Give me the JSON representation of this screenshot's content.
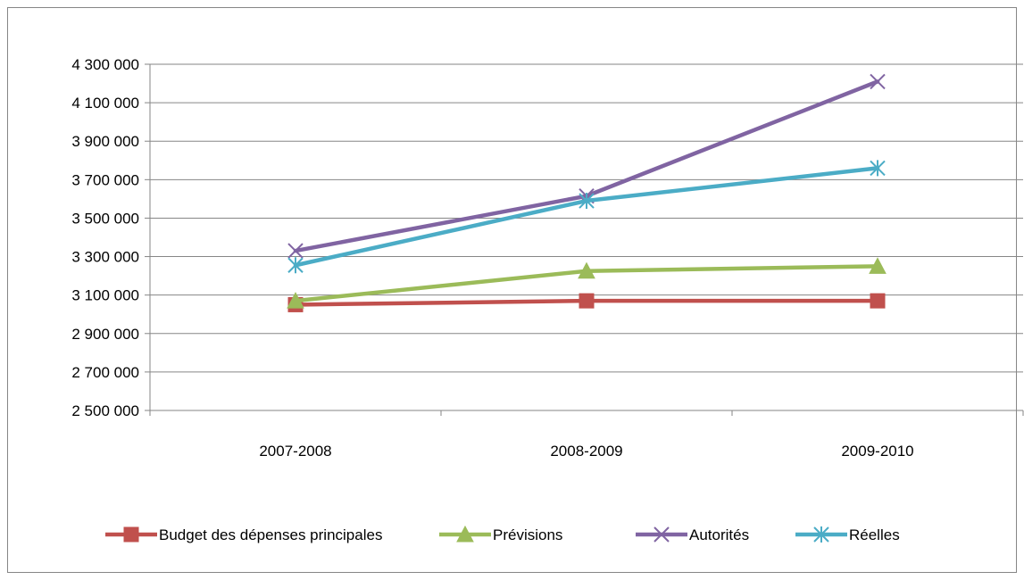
{
  "chart_data": {
    "type": "line",
    "categories": [
      "2007-2008",
      "2008-2009",
      "2009-2010"
    ],
    "y_tick_labels": [
      "2 500 000",
      "2 700 000",
      "2 900 000",
      "3 100 000",
      "3 300 000",
      "3 500 000",
      "3 700 000",
      "3 900 000",
      "4 100 000",
      "4 300 000"
    ],
    "ylim": [
      2500000,
      4300000
    ],
    "y_tick_step": 200000,
    "grid": true,
    "legend_position": "bottom",
    "series": [
      {
        "name": "Budget des dépenses principales",
        "color": "#c0504d",
        "marker": "square",
        "values": [
          3050000,
          3070000,
          3070000
        ]
      },
      {
        "name": "Prévisions",
        "color": "#9bbb59",
        "marker": "triangle",
        "values": [
          3070000,
          3225000,
          3250000
        ]
      },
      {
        "name": "Autorités",
        "color": "#8064a2",
        "marker": "x",
        "values": [
          3330000,
          3615000,
          4210000
        ]
      },
      {
        "name": "Réelles",
        "color": "#4bacc6",
        "marker": "star",
        "values": [
          3255000,
          3590000,
          3760000
        ]
      }
    ]
  }
}
